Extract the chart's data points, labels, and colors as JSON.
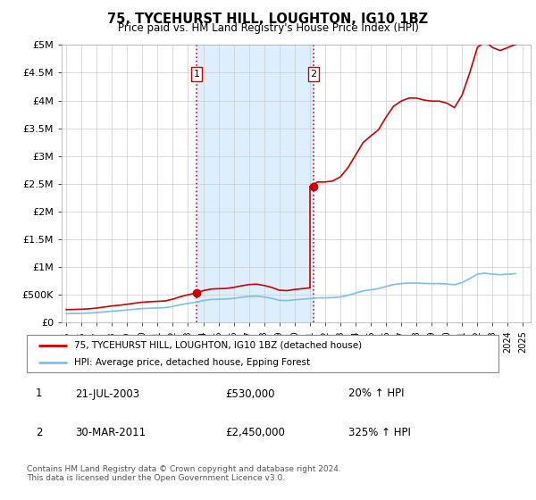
{
  "title": "75, TYCEHURST HILL, LOUGHTON, IG10 1BZ",
  "subtitle": "Price paid vs. HM Land Registry's House Price Index (HPI)",
  "ylim": [
    0,
    5000000
  ],
  "yticks": [
    0,
    500000,
    1000000,
    1500000,
    2000000,
    2500000,
    3000000,
    3500000,
    4000000,
    4500000,
    5000000
  ],
  "ytick_labels": [
    "£0",
    "£500K",
    "£1M",
    "£1.5M",
    "£2M",
    "£2.5M",
    "£3M",
    "£3.5M",
    "£4M",
    "£4.5M",
    "£5M"
  ],
  "xlim_start": 1994.7,
  "xlim_end": 2025.5,
  "transaction1_date": 2003.55,
  "transaction1_price": 530000,
  "transaction2_date": 2011.25,
  "transaction2_price": 2450000,
  "legend_line1": "75, TYCEHURST HILL, LOUGHTON, IG10 1BZ (detached house)",
  "legend_line2": "HPI: Average price, detached house, Epping Forest",
  "table_row1": [
    "1",
    "21-JUL-2003",
    "£530,000",
    "20% ↑ HPI"
  ],
  "table_row2": [
    "2",
    "30-MAR-2011",
    "£2,450,000",
    "325% ↑ HPI"
  ],
  "footer": "Contains HM Land Registry data © Crown copyright and database right 2024.\nThis data is licensed under the Open Government Licence v3.0.",
  "hpi_color": "#7bbfea",
  "price_color": "#cc0000",
  "shade_color": "#ddeeff",
  "hpi_index": [
    100,
    101,
    103,
    106,
    112,
    120,
    128,
    134,
    141,
    150,
    157,
    161,
    164,
    167,
    181,
    200,
    215,
    228,
    247,
    259,
    262,
    264,
    272,
    284,
    294,
    297,
    287,
    272,
    250,
    247,
    256,
    262,
    269,
    278,
    278,
    280,
    288,
    306,
    331,
    356,
    369,
    381,
    406,
    428,
    438,
    444,
    444,
    440,
    438,
    438,
    434,
    425,
    450,
    494,
    544,
    556,
    544,
    538,
    544,
    550
  ],
  "hpi_base": 160000,
  "price_index_base1": 530000,
  "price_index_base2": 2450000,
  "price_index_base1_idx": 17,
  "price_index_base2_idx": 34,
  "xtick_years": [
    1995,
    1996,
    1997,
    1998,
    1999,
    2000,
    2001,
    2002,
    2003,
    2004,
    2005,
    2006,
    2007,
    2008,
    2009,
    2010,
    2011,
    2012,
    2013,
    2014,
    2015,
    2016,
    2017,
    2018,
    2019,
    2020,
    2021,
    2022,
    2023,
    2024,
    2025
  ]
}
